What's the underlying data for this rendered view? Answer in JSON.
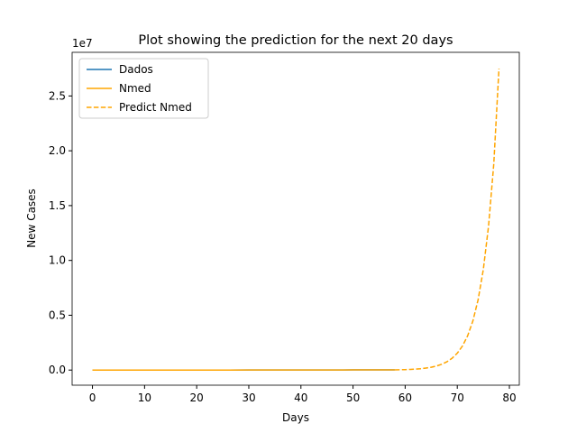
{
  "chart_data": {
    "type": "line",
    "title": "Plot showing the prediction for the next 20 days",
    "xlabel": "Days",
    "ylabel": "New Cases",
    "y_offset_label": "1e7",
    "legend": "upper left",
    "xlim": [
      -3.9,
      81.9
    ],
    "xticks": [
      0,
      10,
      20,
      30,
      40,
      50,
      60,
      70,
      80
    ],
    "ylim": [
      -1380000,
      28980000
    ],
    "yticks": [
      {
        "value": 0,
        "label": "0.0"
      },
      {
        "value": 5000000,
        "label": "0.5"
      },
      {
        "value": 10000000,
        "label": "1.0"
      },
      {
        "value": 15000000,
        "label": "1.5"
      },
      {
        "value": 20000000,
        "label": "2.0"
      },
      {
        "value": 25000000,
        "label": "2.5"
      }
    ],
    "series": [
      {
        "name": "Dados",
        "color": "#1f77b4",
        "style": "solid",
        "x": [
          0,
          5,
          10,
          15,
          20,
          25,
          30,
          35,
          40,
          45,
          50,
          55,
          58
        ],
        "values": [
          0,
          100,
          300,
          800,
          1500,
          2500,
          4000,
          6000,
          8500,
          11000,
          14000,
          17000,
          21000
        ]
      },
      {
        "name": "Nmed",
        "color": "#ffa500",
        "style": "solid",
        "x": [
          0,
          5,
          10,
          15,
          20,
          25,
          30,
          35,
          40,
          45,
          50,
          55,
          58
        ],
        "values": [
          0,
          120,
          350,
          850,
          1600,
          2600,
          4100,
          6100,
          8600,
          11200,
          14200,
          17300,
          21000
        ]
      },
      {
        "name": "Predict Nmed",
        "color": "#ffa500",
        "style": "dashed",
        "x": [
          58,
          59,
          60,
          61,
          62,
          63,
          64,
          65,
          66,
          67,
          68,
          69,
          70,
          71,
          72,
          73,
          74,
          75,
          76,
          77,
          78
        ],
        "values": [
          21000,
          30030,
          42900,
          61400,
          87800,
          125600,
          179600,
          256800,
          367200,
          525100,
          750900,
          1073800,
          1535600,
          2195900,
          3140100,
          4490400,
          6421200,
          9182400,
          13131000,
          18777000,
          27500000
        ]
      }
    ]
  }
}
